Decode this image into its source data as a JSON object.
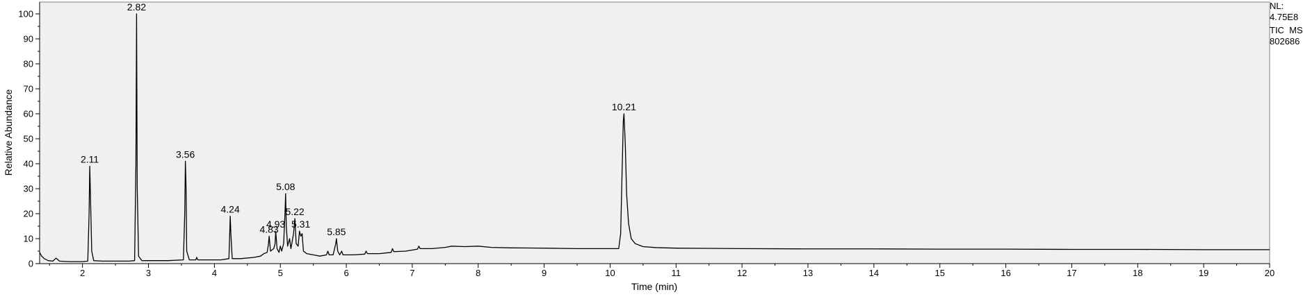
{
  "chart_data": {
    "type": "line",
    "title": "",
    "xlabel": "Time (min)",
    "ylabel": "Relative Abundance",
    "xlim": [
      1.35,
      20
    ],
    "ylim": [
      0,
      100
    ],
    "xticks": [
      2,
      3,
      4,
      5,
      6,
      7,
      8,
      9,
      10,
      11,
      12,
      13,
      14,
      15,
      16,
      17,
      18,
      19,
      20
    ],
    "yticks": [
      0,
      10,
      20,
      30,
      40,
      50,
      60,
      70,
      80,
      90,
      100
    ],
    "grid": false,
    "legend": "none",
    "side_info": [
      "NL:",
      "4.75E8",
      "TIC  MS",
      "802686"
    ],
    "series": [
      {
        "name": "",
        "color": "#000000",
        "points": [
          [
            1.35,
            4.5
          ],
          [
            1.38,
            3.0
          ],
          [
            1.42,
            2.0
          ],
          [
            1.48,
            1.2
          ],
          [
            1.55,
            1.0
          ],
          [
            1.6,
            2.2
          ],
          [
            1.65,
            1.0
          ],
          [
            1.8,
            0.8
          ],
          [
            2.0,
            0.8
          ],
          [
            2.08,
            1.0
          ],
          [
            2.1,
            20.0
          ],
          [
            2.11,
            39.0
          ],
          [
            2.12,
            28.0
          ],
          [
            2.14,
            5.0
          ],
          [
            2.17,
            1.2
          ],
          [
            2.3,
            1.0
          ],
          [
            2.5,
            1.0
          ],
          [
            2.7,
            1.0
          ],
          [
            2.79,
            1.2
          ],
          [
            2.81,
            40.0
          ],
          [
            2.82,
            100.0
          ],
          [
            2.83,
            30.0
          ],
          [
            2.85,
            3.0
          ],
          [
            2.9,
            1.2
          ],
          [
            3.1,
            1.2
          ],
          [
            3.3,
            1.2
          ],
          [
            3.53,
            1.5
          ],
          [
            3.55,
            20.0
          ],
          [
            3.56,
            41.0
          ],
          [
            3.57,
            31.0
          ],
          [
            3.58,
            5.0
          ],
          [
            3.62,
            1.5
          ],
          [
            3.72,
            1.5
          ],
          [
            3.73,
            2.5
          ],
          [
            3.75,
            1.5
          ],
          [
            3.9,
            1.5
          ],
          [
            4.1,
            1.5
          ],
          [
            4.22,
            2.0
          ],
          [
            4.23,
            10.0
          ],
          [
            4.24,
            19.0
          ],
          [
            4.25,
            12.0
          ],
          [
            4.27,
            2.0
          ],
          [
            4.4,
            2.0
          ],
          [
            4.6,
            2.5
          ],
          [
            4.7,
            3.0
          ],
          [
            4.75,
            4.0
          ],
          [
            4.8,
            4.5
          ],
          [
            4.82,
            8.0
          ],
          [
            4.83,
            11.0
          ],
          [
            4.85,
            5.0
          ],
          [
            4.9,
            6.0
          ],
          [
            4.92,
            8.0
          ],
          [
            4.93,
            13.0
          ],
          [
            4.95,
            6.0
          ],
          [
            4.98,
            4.5
          ],
          [
            5.0,
            7.0
          ],
          [
            5.02,
            5.0
          ],
          [
            5.05,
            8.0
          ],
          [
            5.07,
            20.0
          ],
          [
            5.08,
            28.0
          ],
          [
            5.09,
            15.0
          ],
          [
            5.11,
            7.0
          ],
          [
            5.14,
            10.0
          ],
          [
            5.16,
            6.0
          ],
          [
            5.2,
            12.0
          ],
          [
            5.22,
            18.0
          ],
          [
            5.24,
            8.0
          ],
          [
            5.27,
            7.0
          ],
          [
            5.29,
            13.0
          ],
          [
            5.31,
            11.0
          ],
          [
            5.33,
            12.0
          ],
          [
            5.35,
            5.0
          ],
          [
            5.4,
            4.0
          ],
          [
            5.5,
            3.5
          ],
          [
            5.6,
            3.0
          ],
          [
            5.7,
            3.5
          ],
          [
            5.72,
            5.0
          ],
          [
            5.74,
            3.5
          ],
          [
            5.8,
            3.5
          ],
          [
            5.84,
            8.0
          ],
          [
            5.85,
            10.0
          ],
          [
            5.87,
            5.0
          ],
          [
            5.9,
            3.5
          ],
          [
            5.93,
            5.0
          ],
          [
            5.95,
            3.5
          ],
          [
            6.1,
            3.5
          ],
          [
            6.28,
            3.8
          ],
          [
            6.3,
            5.0
          ],
          [
            6.32,
            4.0
          ],
          [
            6.5,
            4.0
          ],
          [
            6.68,
            4.5
          ],
          [
            6.7,
            6.0
          ],
          [
            6.72,
            4.8
          ],
          [
            6.9,
            5.0
          ],
          [
            7.08,
            5.8
          ],
          [
            7.1,
            7.0
          ],
          [
            7.12,
            6.0
          ],
          [
            7.3,
            6.0
          ],
          [
            7.5,
            6.5
          ],
          [
            7.6,
            7.0
          ],
          [
            7.8,
            6.8
          ],
          [
            8.0,
            7.0
          ],
          [
            8.2,
            6.5
          ],
          [
            8.5,
            6.3
          ],
          [
            9.0,
            6.2
          ],
          [
            9.5,
            6.0
          ],
          [
            10.0,
            6.0
          ],
          [
            10.13,
            6.0
          ],
          [
            10.16,
            12.0
          ],
          [
            10.18,
            35.0
          ],
          [
            10.2,
            57.0
          ],
          [
            10.21,
            60.0
          ],
          [
            10.23,
            48.0
          ],
          [
            10.25,
            28.0
          ],
          [
            10.28,
            16.0
          ],
          [
            10.32,
            10.0
          ],
          [
            10.38,
            8.0
          ],
          [
            10.5,
            6.8
          ],
          [
            10.7,
            6.4
          ],
          [
            11.0,
            6.2
          ],
          [
            12.0,
            6.0
          ],
          [
            13.0,
            5.9
          ],
          [
            14.0,
            5.9
          ],
          [
            15.0,
            5.8
          ],
          [
            16.0,
            5.8
          ],
          [
            17.0,
            5.7
          ],
          [
            18.0,
            5.7
          ],
          [
            19.0,
            5.6
          ],
          [
            20.0,
            5.6
          ]
        ]
      }
    ],
    "peak_labels": [
      {
        "text": "2.11",
        "x": 2.11,
        "y": 39
      },
      {
        "text": "2.82",
        "x": 2.82,
        "y": 100
      },
      {
        "text": "3.56",
        "x": 3.56,
        "y": 41
      },
      {
        "text": "4.24",
        "x": 4.24,
        "y": 19
      },
      {
        "text": "4.83",
        "x": 4.83,
        "y": 11
      },
      {
        "text": "4.93",
        "x": 4.93,
        "y": 13
      },
      {
        "text": "5.08",
        "x": 5.08,
        "y": 28
      },
      {
        "text": "5.22",
        "x": 5.22,
        "y": 18
      },
      {
        "text": "5.31",
        "x": 5.31,
        "y": 13
      },
      {
        "text": "5.85",
        "x": 5.85,
        "y": 10
      },
      {
        "text": "10.21",
        "x": 10.21,
        "y": 60
      }
    ]
  }
}
